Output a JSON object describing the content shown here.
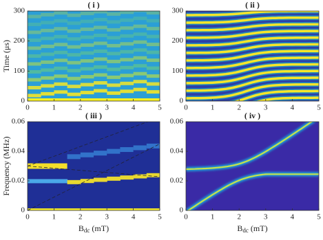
{
  "chart_data": [
    {
      "type": "heatmap",
      "title": "( i )",
      "ylabel": "Time (μs)",
      "xlim": [
        0,
        5
      ],
      "xticks": [
        0,
        1,
        2,
        3,
        4,
        5
      ],
      "ylim": [
        0,
        300
      ],
      "yticks": [
        0,
        100,
        200,
        300
      ]
    },
    {
      "type": "heatmap",
      "title": "( ii )",
      "xlim": [
        0,
        5
      ],
      "xticks": [
        0,
        1,
        2,
        3,
        4,
        5
      ],
      "ylim": [
        0,
        300
      ],
      "yticks": [
        0,
        100,
        200,
        300
      ]
    },
    {
      "type": "heatmap",
      "title": "( iii )",
      "ylabel": "Frequency (MHz)",
      "xlabel": "B",
      "xlabel_sub": "dc",
      "xlabel_unit": "(mT)",
      "xlim": [
        0,
        5
      ],
      "xticks": [
        0,
        1,
        2,
        3,
        4,
        5
      ],
      "ylim": [
        0,
        0.06
      ],
      "yticks": [
        0,
        0.02,
        0.04,
        0.06
      ]
    },
    {
      "type": "heatmap",
      "title": "( iv )",
      "xlabel": "B",
      "xlabel_sub": "dc",
      "xlabel_unit": "(mT)",
      "xlim": [
        0,
        5
      ],
      "xticks": [
        0,
        1,
        2,
        3,
        4,
        5
      ],
      "ylim": [
        0,
        0.06
      ],
      "yticks": [
        0,
        0.02,
        0.04,
        0.06
      ]
    }
  ]
}
